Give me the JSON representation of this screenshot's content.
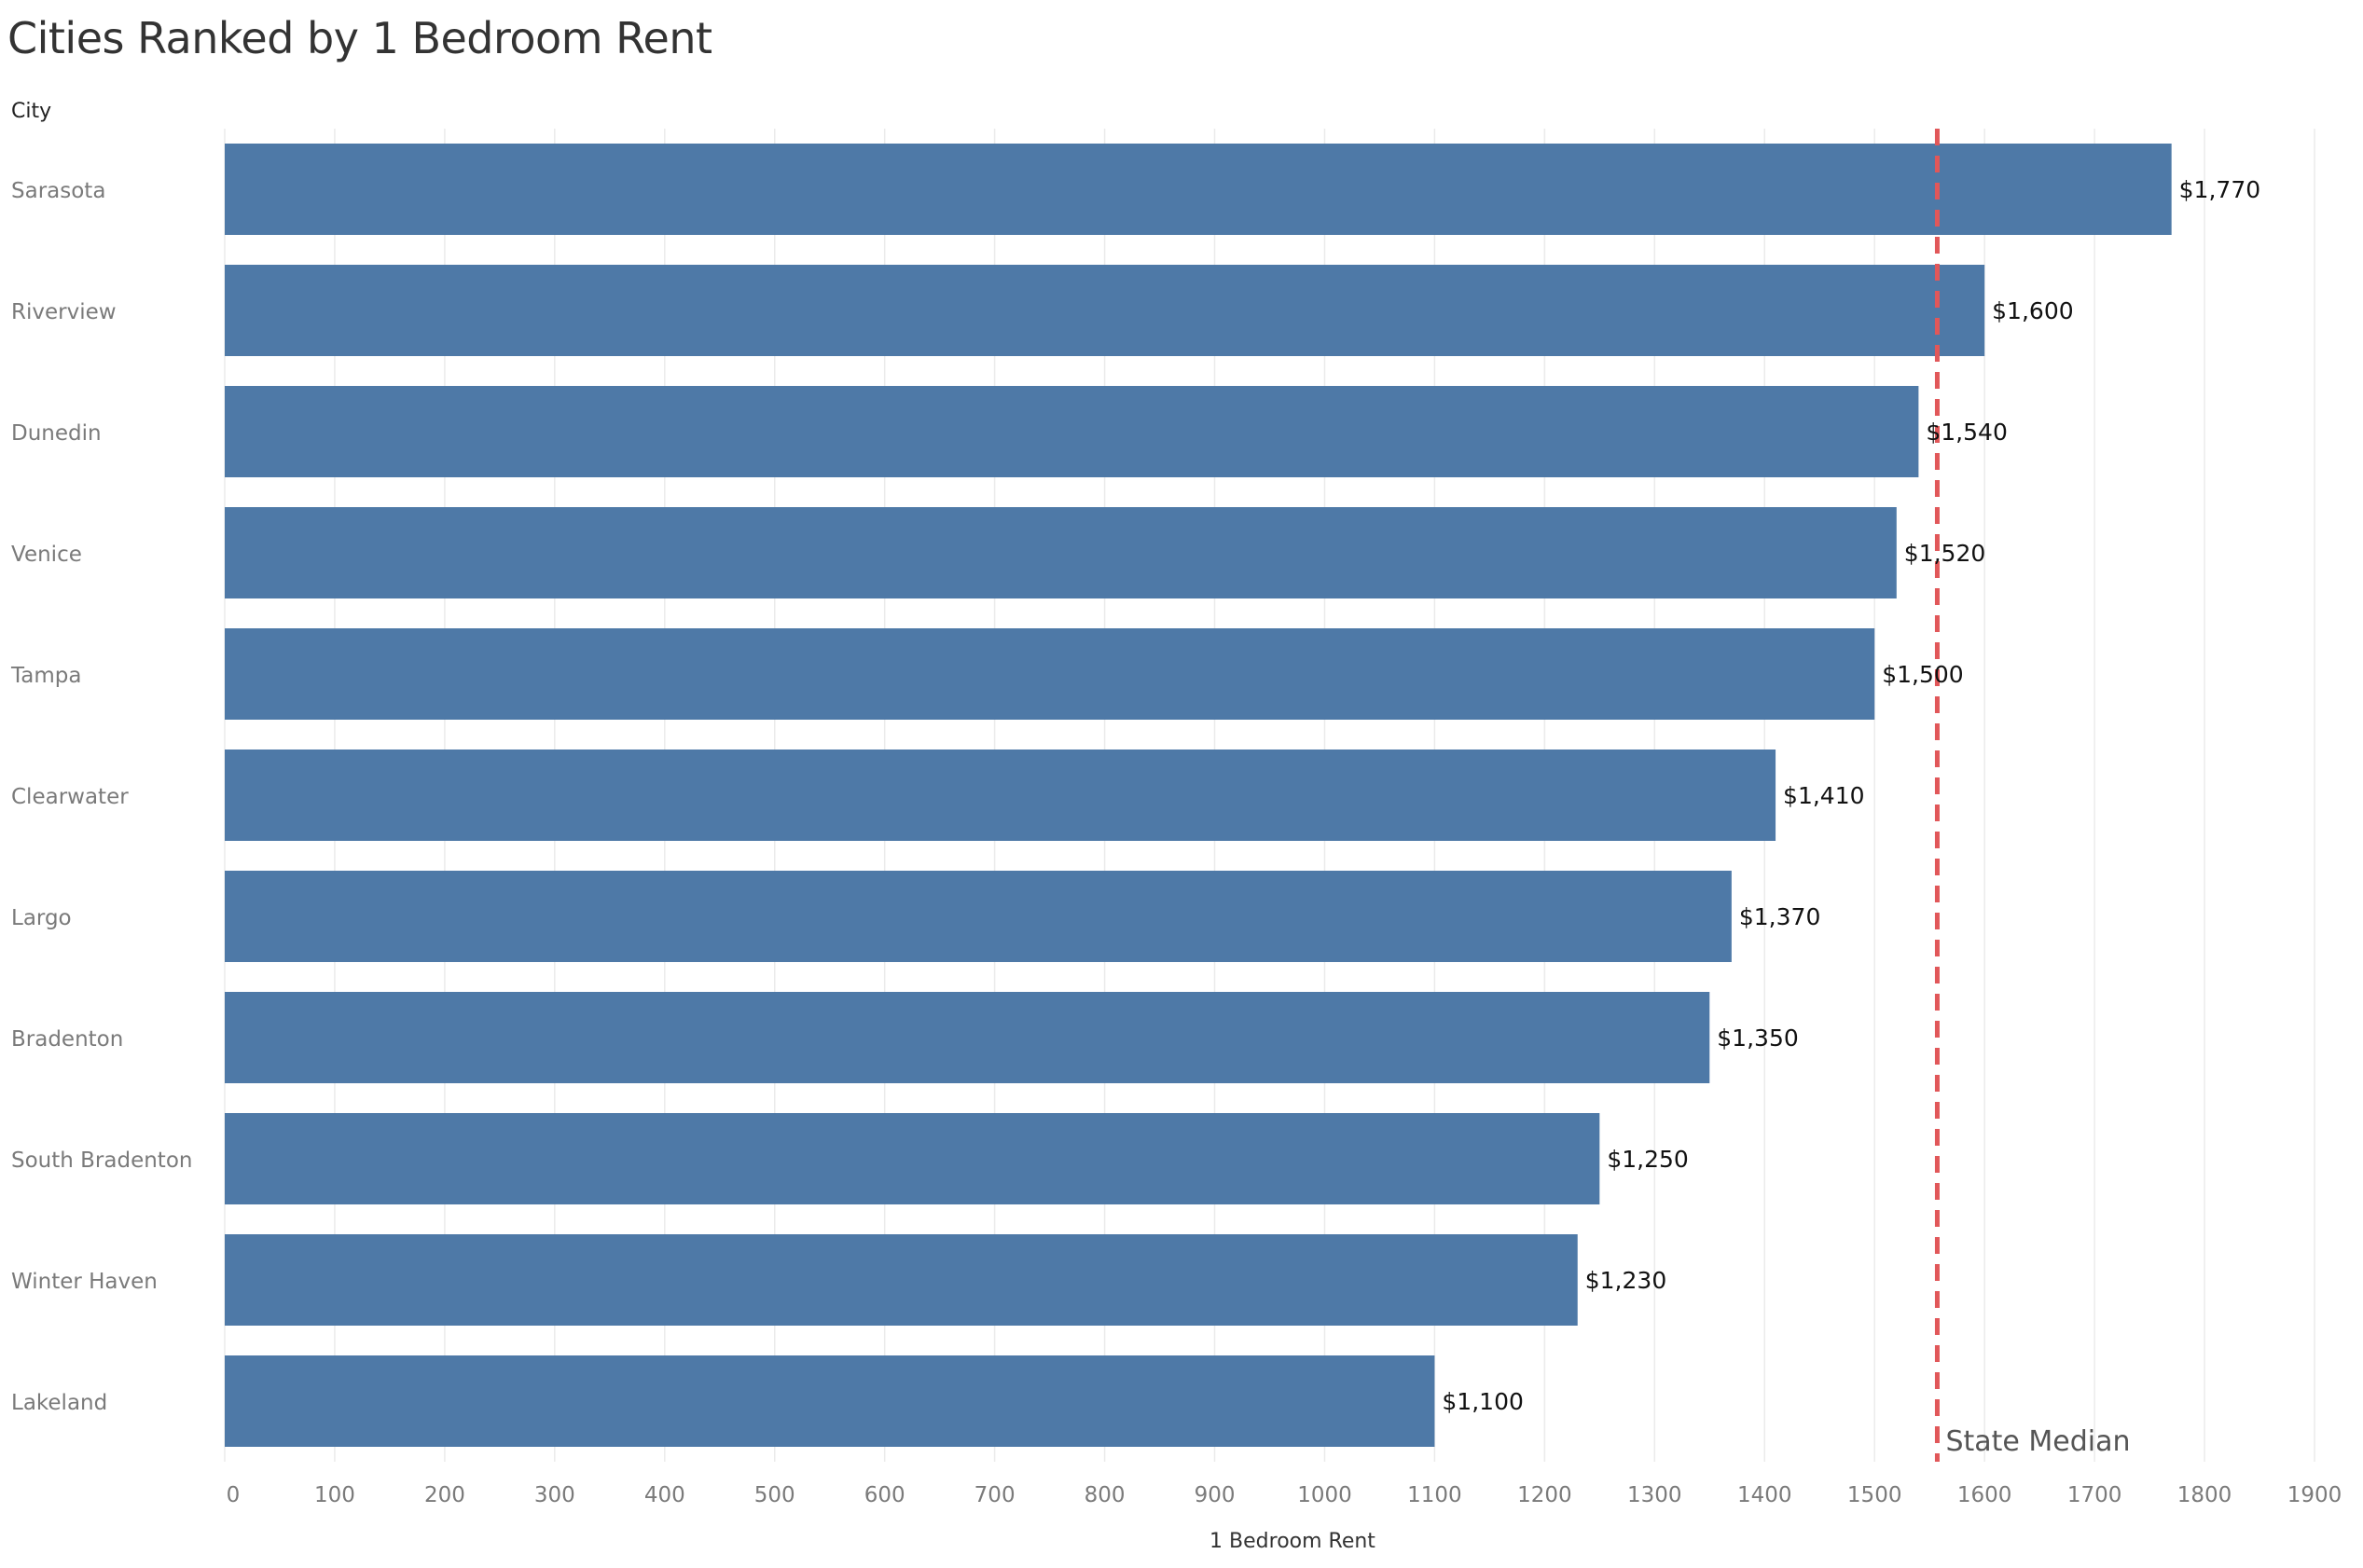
{
  "title": "Cities Ranked by 1 Bedroom Rent",
  "row_header": "City",
  "colors": {
    "bar": "#4e79a7",
    "reference_line": "#e15759",
    "grid": "#ebebeb"
  },
  "chart_data": {
    "type": "bar",
    "orientation": "horizontal",
    "categories": [
      "Sarasota",
      "Riverview",
      "Dunedin",
      "Venice",
      "Tampa",
      "Clearwater",
      "Largo",
      "Bradenton",
      "South Bradenton",
      "Winter Haven",
      "Lakeland"
    ],
    "values": [
      1770,
      1600,
      1540,
      1520,
      1500,
      1410,
      1370,
      1350,
      1250,
      1230,
      1100
    ],
    "data_labels": [
      "$1,770",
      "$1,600",
      "$1,540",
      "$1,520",
      "$1,500",
      "$1,410",
      "$1,370",
      "$1,350",
      "$1,250",
      "$1,230",
      "$1,100"
    ],
    "xlabel": "1 Bedroom Rent",
    "ylabel": "City",
    "xlim": [
      0,
      1900
    ],
    "xticks": [
      0,
      100,
      200,
      300,
      400,
      500,
      600,
      700,
      800,
      900,
      1000,
      1100,
      1200,
      1300,
      1400,
      1500,
      1600,
      1700,
      1800,
      1900
    ],
    "grid": "vertical",
    "reference_line": {
      "value": 1557,
      "label": "State Median",
      "style": "dashed"
    }
  }
}
